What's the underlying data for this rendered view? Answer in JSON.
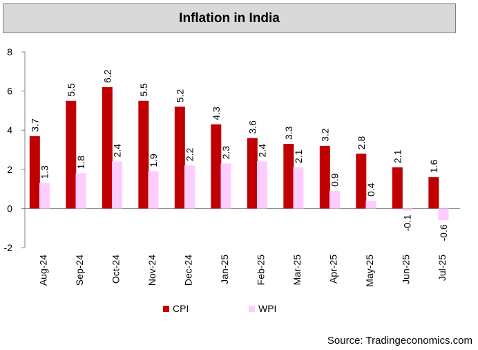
{
  "chart_data": {
    "type": "bar",
    "title": "Inflation in India",
    "xlabel": "",
    "ylabel": "",
    "ylim": [
      -2,
      8
    ],
    "yticks": [
      -2,
      0,
      2,
      4,
      6,
      8
    ],
    "categories": [
      "Aug-24",
      "Sep-24",
      "Oct-24",
      "Nov-24",
      "Dec-24",
      "Jan-25",
      "Feb-25",
      "Mar-25",
      "Apr-25",
      "May-25",
      "Jun-25",
      "Jul-25"
    ],
    "series": [
      {
        "name": "CPI",
        "color": "#c00000",
        "values": [
          3.7,
          5.5,
          6.2,
          5.5,
          5.2,
          4.3,
          3.6,
          3.3,
          3.2,
          2.8,
          2.1,
          1.6
        ]
      },
      {
        "name": "WPI",
        "color": "#ffccff",
        "values": [
          1.3,
          1.8,
          2.4,
          1.9,
          2.2,
          2.3,
          2.4,
          2.1,
          0.9,
          0.4,
          -0.1,
          -0.6
        ]
      }
    ],
    "legend_position": "bottom",
    "grid": false
  },
  "source_text": "Source: Tradingeconomics.com"
}
